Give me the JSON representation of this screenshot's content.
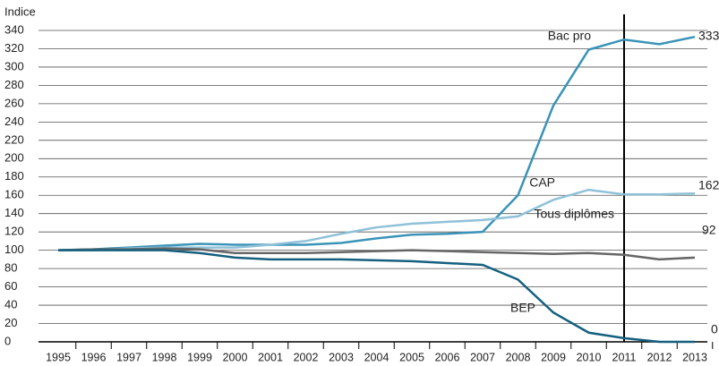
{
  "chart_data": {
    "type": "line",
    "y_label": "Indice",
    "x": [
      1995,
      1996,
      1997,
      1998,
      1999,
      2000,
      2001,
      2002,
      2003,
      2004,
      2005,
      2006,
      2007,
      2008,
      2009,
      2010,
      2011,
      2012,
      2013
    ],
    "ylim": [
      0,
      340
    ],
    "yticks": [
      0,
      20,
      40,
      60,
      80,
      100,
      120,
      140,
      160,
      180,
      200,
      220,
      240,
      260,
      280,
      300,
      320,
      340
    ],
    "grid": true,
    "vline": 2011,
    "series": [
      {
        "name": "Bac pro",
        "color": "#3a93b8",
        "values": [
          100,
          101,
          103,
          105,
          107,
          106,
          106,
          106,
          108,
          113,
          117,
          118,
          120,
          160,
          258,
          319,
          330,
          325,
          333
        ]
      },
      {
        "name": "CAP",
        "color": "#8fc1d8",
        "values": [
          100,
          100,
          102,
          103,
          103,
          103,
          106,
          110,
          118,
          125,
          129,
          131,
          133,
          137,
          155,
          166,
          161,
          161,
          162
        ]
      },
      {
        "name": "Tous diplômes",
        "color": "#666666",
        "values": [
          100,
          101,
          101,
          102,
          101,
          97,
          97,
          97,
          98,
          99,
          100,
          99,
          98,
          97,
          96,
          97,
          95,
          90,
          92
        ]
      },
      {
        "name": "BEP",
        "color": "#15607f",
        "values": [
          100,
          100,
          100,
          100,
          97,
          92,
          90,
          90,
          90,
          89,
          88,
          86,
          84,
          68,
          32,
          10,
          4,
          0,
          0
        ]
      }
    ]
  }
}
